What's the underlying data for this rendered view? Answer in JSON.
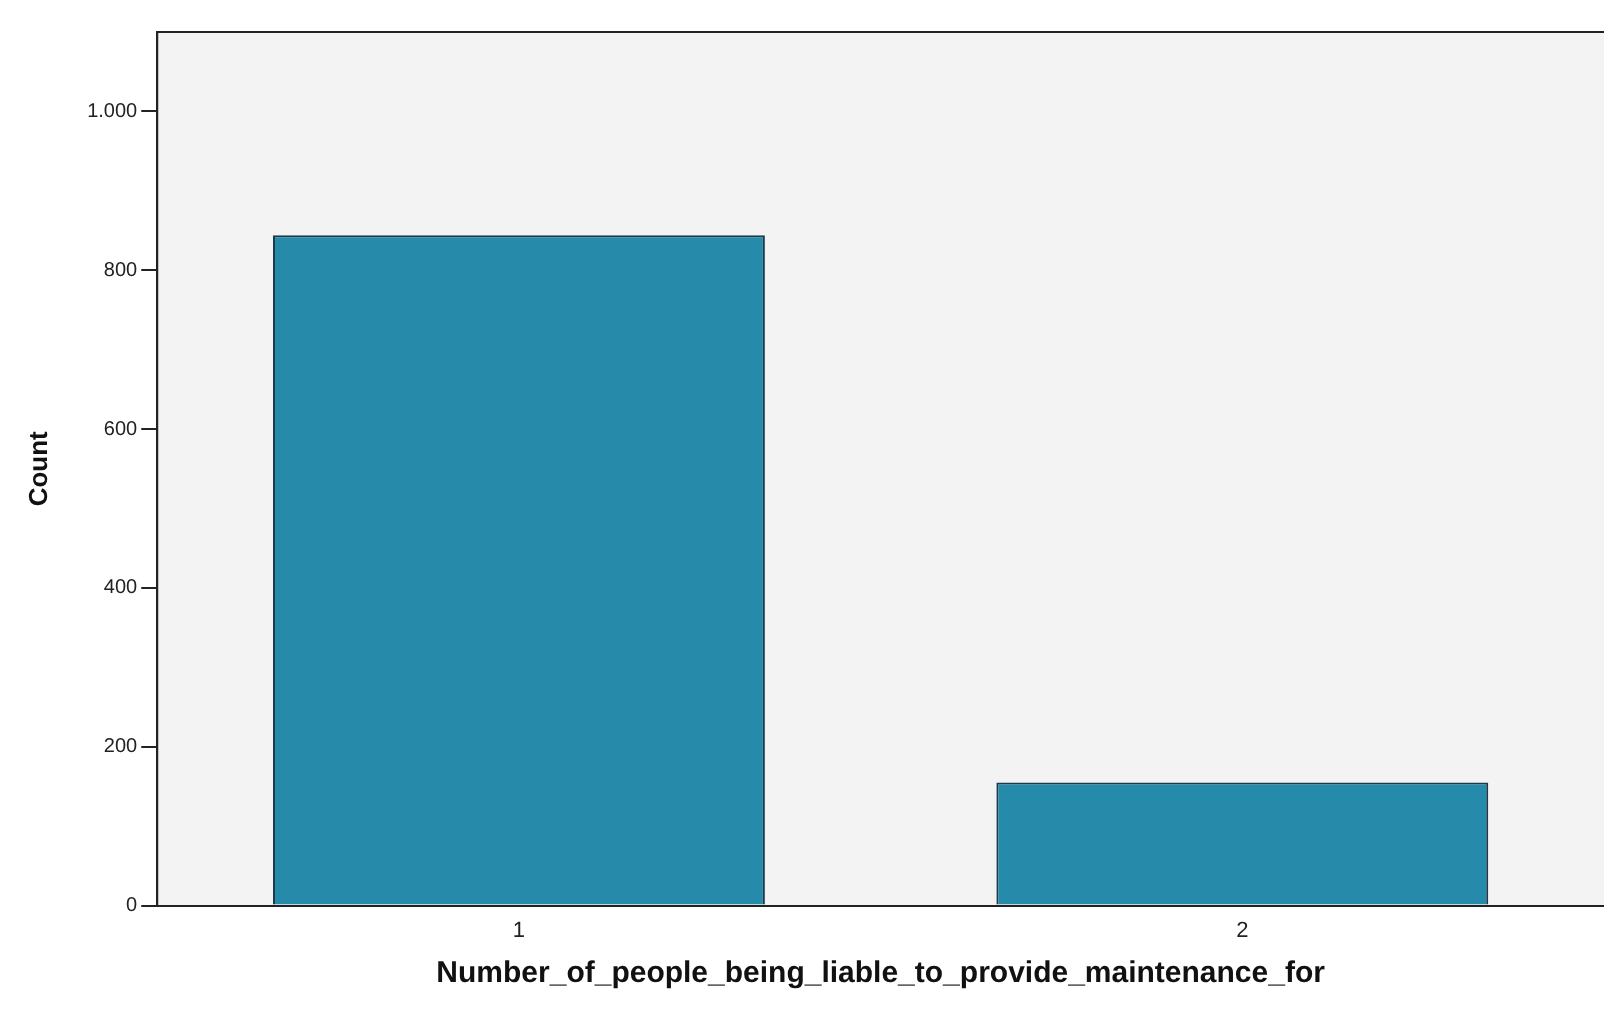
{
  "chart_data": {
    "type": "bar",
    "xlabel": "Number_of_people_being_liable_to_provide_maintenance_for",
    "ylabel": "Count",
    "categories": [
      "1",
      "2"
    ],
    "series": [
      {
        "color": "#268aab",
        "values": [
          844,
          155
        ]
      }
    ],
    "ylim": [
      0,
      1100
    ],
    "yticks": [
      0,
      200,
      400,
      600,
      800,
      {
        "value": 1000,
        "label": "1.000"
      }
    ],
    "grid": false,
    "legend": false
  }
}
